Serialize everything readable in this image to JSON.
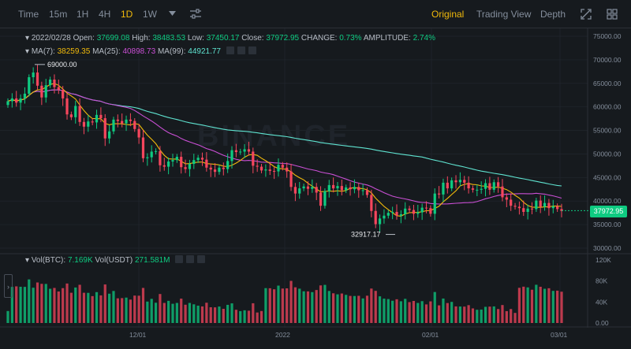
{
  "toolbar": {
    "timeframes": [
      "Time",
      "15m",
      "1H",
      "4H",
      "1D",
      "1W"
    ],
    "active_timeframe": "1D",
    "views": [
      "Original",
      "Trading View",
      "Depth"
    ],
    "active_view": "Original"
  },
  "info": {
    "date": "2022/02/28",
    "open_label": "Open:",
    "open": "37699.08",
    "high_label": "High:",
    "high": "38483.53",
    "low_label": "Low:",
    "low": "37450.17",
    "close_label": "Close:",
    "close": "37972.95",
    "change_label": "CHANGE:",
    "change": "0.73%",
    "amplitude_label": "AMPLITUDE:",
    "amplitude": "2.74%",
    "ma7_label": "MA(7):",
    "ma7": "38259.35",
    "ma25_label": "MA(25):",
    "ma25": "40898.73",
    "ma99_label": "MA(99):",
    "ma99": "44921.77"
  },
  "volume_info": {
    "vol_btc_label": "Vol(BTC):",
    "vol_btc": "7.169K",
    "vol_usdt_label": "Vol(USDT)",
    "vol_usdt": "271.581M"
  },
  "watermark": "BINANCE",
  "current_price": "37972.95",
  "annotations": {
    "high": "69000.00",
    "low": "32917.17"
  },
  "colors": {
    "up": "#0ecb81",
    "down": "#f6465d",
    "ma7": "#f0b90b",
    "ma25": "#c94fd4",
    "ma99": "#5fe3d0",
    "accent": "#f0b90b"
  },
  "chart_data": {
    "type": "candlestick",
    "price_ticks": [
      "75000.00",
      "70000.00",
      "65000.00",
      "60000.00",
      "55000.00",
      "50000.00",
      "45000.00",
      "40000.00",
      "35000.00",
      "30000.00"
    ],
    "volume_ticks": [
      "120K",
      "80K",
      "40K",
      "0.00"
    ],
    "x_ticks": [
      "12/01",
      "2022",
      "02/01",
      "03/01"
    ],
    "price_range": [
      29000,
      76000
    ],
    "volume_range": [
      0,
      130000
    ],
    "closes": [
      61200,
      61800,
      60900,
      61800,
      62800,
      66300,
      67300,
      64500,
      62000,
      64600,
      65800,
      64200,
      63600,
      61800,
      58400,
      57800,
      60200,
      56800,
      55800,
      56900,
      56700,
      58300,
      57600,
      53300,
      54800,
      57300,
      57000,
      56500,
      57300,
      57000,
      55300,
      53500,
      49100,
      49300,
      50500,
      50600,
      47600,
      47300,
      48400,
      48700,
      49400,
      47200,
      46800,
      47900,
      48700,
      49200,
      48800,
      47100,
      46700,
      46200,
      47100,
      46800,
      48500,
      50800,
      50400,
      50500,
      51000,
      50500,
      47500,
      47300,
      46500,
      46700,
      46400,
      46300,
      47700,
      47100,
      46300,
      43000,
      41600,
      42700,
      43100,
      42600,
      43000,
      41800,
      39000,
      42100,
      43400,
      42700,
      43200,
      42300,
      42900,
      42500,
      43000,
      42300,
      42300,
      41300,
      37900,
      35100,
      36300,
      36900,
      37500,
      37700,
      36900,
      37200,
      38400,
      38100,
      37300,
      37600,
      38600,
      38500,
      37300,
      41600,
      41400,
      43900,
      42700,
      44400,
      44000,
      44500,
      43900,
      42700,
      42400,
      42400,
      42600,
      43800,
      42400,
      44000,
      43100,
      40800,
      40300,
      39000,
      38800,
      38500,
      37700,
      38400,
      38300,
      40100,
      38800,
      39600,
      38500,
      38900,
      38300,
      37900
    ]
  }
}
